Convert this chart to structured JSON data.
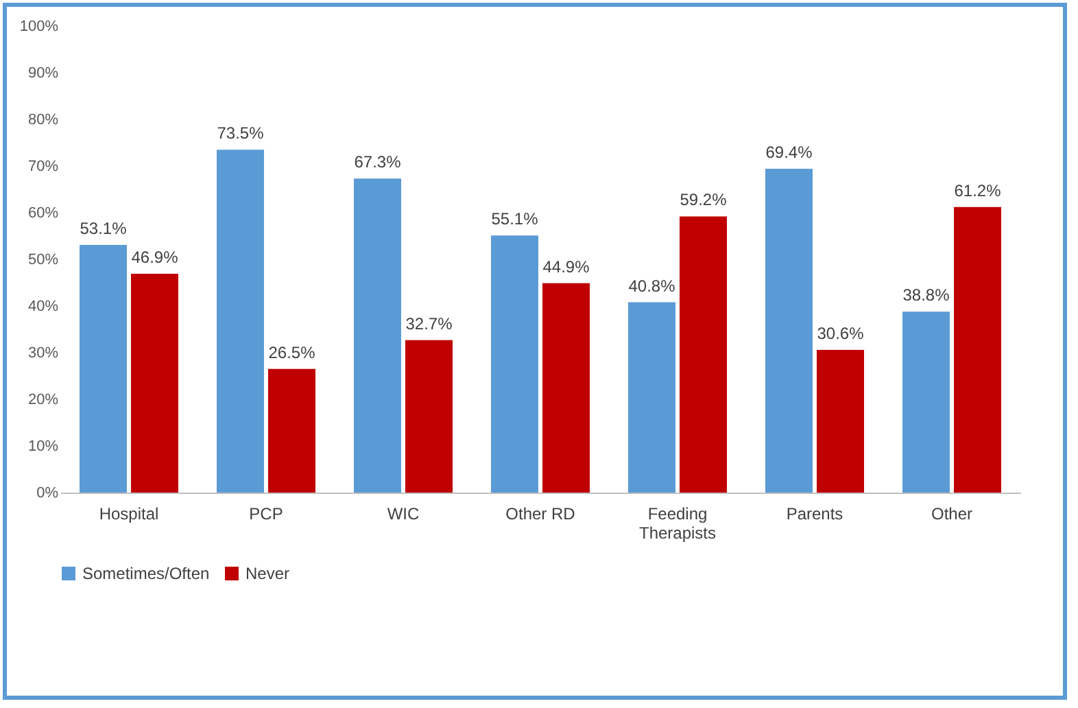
{
  "chart_data": {
    "type": "bar",
    "categories": [
      "Hospital",
      "PCP",
      "WIC",
      "Other RD",
      "Feeding Therapists",
      "Parents",
      "Other"
    ],
    "series": [
      {
        "name": "Sometimes/Often",
        "color": "#5b9bd5",
        "values": [
          53.1,
          73.5,
          67.3,
          55.1,
          40.8,
          69.4,
          38.8
        ],
        "value_labels": [
          "53.1%",
          "73.5%",
          "67.3%",
          "55.1%",
          "40.8%",
          "69.4%",
          "38.8%"
        ]
      },
      {
        "name": "Never",
        "color": "#c00000",
        "values": [
          46.9,
          26.5,
          32.7,
          44.9,
          59.2,
          30.6,
          61.2
        ],
        "value_labels": [
          "46.9%",
          "26.5%",
          "32.7%",
          "44.9%",
          "59.2%",
          "30.6%",
          "61.2%"
        ]
      }
    ],
    "ylim": [
      0,
      100
    ],
    "yticks": [
      {
        "value": 0,
        "label": "0%"
      },
      {
        "value": 10,
        "label": "10%"
      },
      {
        "value": 20,
        "label": "20%"
      },
      {
        "value": 30,
        "label": "30%"
      },
      {
        "value": 40,
        "label": "40%"
      },
      {
        "value": 50,
        "label": "50%"
      },
      {
        "value": 60,
        "label": "60%"
      },
      {
        "value": 70,
        "label": "70%"
      },
      {
        "value": 80,
        "label": "80%"
      },
      {
        "value": 90,
        "label": "90%"
      },
      {
        "value": 100,
        "label": "100%"
      }
    ],
    "legend": "bottom"
  }
}
